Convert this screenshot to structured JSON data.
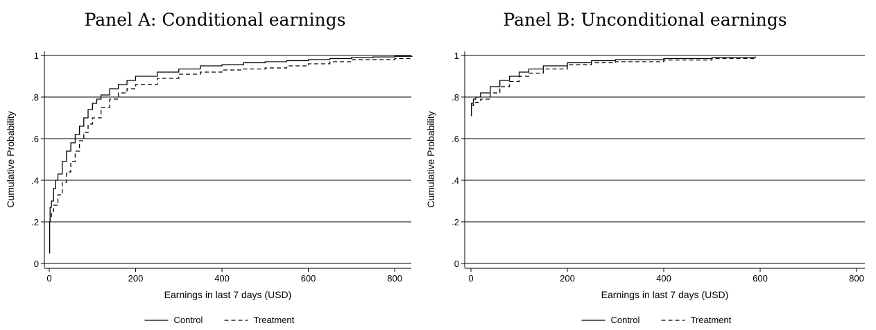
{
  "chart_data": [
    {
      "type": "line",
      "title": "Panel A: Conditional earnings",
      "xlabel": "Earnings in last 7 days (USD)",
      "ylabel": "Cumulative Probability",
      "xlim": [
        0,
        840
      ],
      "ylim": [
        0,
        1
      ],
      "xticks": [
        0,
        200,
        400,
        600,
        800
      ],
      "yticks": [
        0,
        0.2,
        0.4,
        0.6,
        0.8,
        1
      ],
      "ytick_labels": [
        "0",
        ".2",
        ".4",
        ".6",
        ".8",
        "1"
      ],
      "grid": "horizontal",
      "legend": "bottom",
      "series": [
        {
          "name": "Control",
          "style": "solid",
          "x": [
            0,
            1,
            2,
            5,
            10,
            15,
            20,
            30,
            40,
            50,
            60,
            70,
            80,
            90,
            100,
            110,
            120,
            140,
            160,
            180,
            200,
            250,
            300,
            350,
            400,
            450,
            500,
            550,
            600,
            650,
            700,
            750,
            800,
            840
          ],
          "y": [
            0.05,
            0.2,
            0.27,
            0.3,
            0.36,
            0.4,
            0.43,
            0.49,
            0.54,
            0.58,
            0.62,
            0.66,
            0.7,
            0.74,
            0.77,
            0.79,
            0.81,
            0.84,
            0.86,
            0.88,
            0.9,
            0.92,
            0.935,
            0.95,
            0.955,
            0.965,
            0.97,
            0.975,
            0.98,
            0.985,
            0.99,
            0.993,
            0.996,
            0.998
          ]
        },
        {
          "name": "Treatment",
          "style": "dashed",
          "x": [
            0,
            2,
            5,
            10,
            20,
            30,
            40,
            50,
            60,
            70,
            80,
            90,
            100,
            120,
            140,
            160,
            180,
            200,
            250,
            300,
            350,
            400,
            450,
            500,
            550,
            600,
            650,
            700,
            750,
            800,
            840
          ],
          "y": [
            0.2,
            0.22,
            0.25,
            0.28,
            0.33,
            0.39,
            0.44,
            0.49,
            0.54,
            0.59,
            0.63,
            0.67,
            0.7,
            0.75,
            0.79,
            0.82,
            0.84,
            0.86,
            0.89,
            0.91,
            0.92,
            0.93,
            0.935,
            0.94,
            0.95,
            0.96,
            0.97,
            0.98,
            0.98,
            0.985,
            0.985
          ]
        }
      ]
    },
    {
      "type": "line",
      "title": "Panel B: Unconditional earnings",
      "xlabel": "Earnings in last 7 days (USD)",
      "ylabel": "Cumulative Probability",
      "xlim": [
        0,
        800
      ],
      "ylim": [
        0,
        1
      ],
      "xticks": [
        0,
        200,
        400,
        600,
        800
      ],
      "yticks": [
        0,
        0.2,
        0.4,
        0.6,
        0.8,
        1
      ],
      "ytick_labels": [
        "0",
        ".2",
        ".4",
        ".6",
        ".8",
        "1"
      ],
      "grid": "horizontal",
      "legend": "bottom",
      "series": [
        {
          "name": "Control",
          "style": "solid",
          "x": [
            0,
            1,
            5,
            10,
            20,
            40,
            60,
            80,
            100,
            120,
            150,
            200,
            250,
            300,
            400,
            500,
            590
          ],
          "y": [
            0.71,
            0.77,
            0.79,
            0.8,
            0.82,
            0.85,
            0.88,
            0.9,
            0.92,
            0.935,
            0.95,
            0.965,
            0.975,
            0.98,
            0.985,
            0.99,
            0.995
          ]
        },
        {
          "name": "Treatment",
          "style": "dashed",
          "x": [
            0,
            2,
            5,
            10,
            20,
            40,
            60,
            80,
            100,
            120,
            150,
            200,
            250,
            300,
            400,
            500,
            590
          ],
          "y": [
            0.76,
            0.76,
            0.765,
            0.775,
            0.79,
            0.82,
            0.85,
            0.875,
            0.9,
            0.915,
            0.935,
            0.955,
            0.965,
            0.97,
            0.978,
            0.985,
            0.99
          ]
        }
      ]
    }
  ]
}
